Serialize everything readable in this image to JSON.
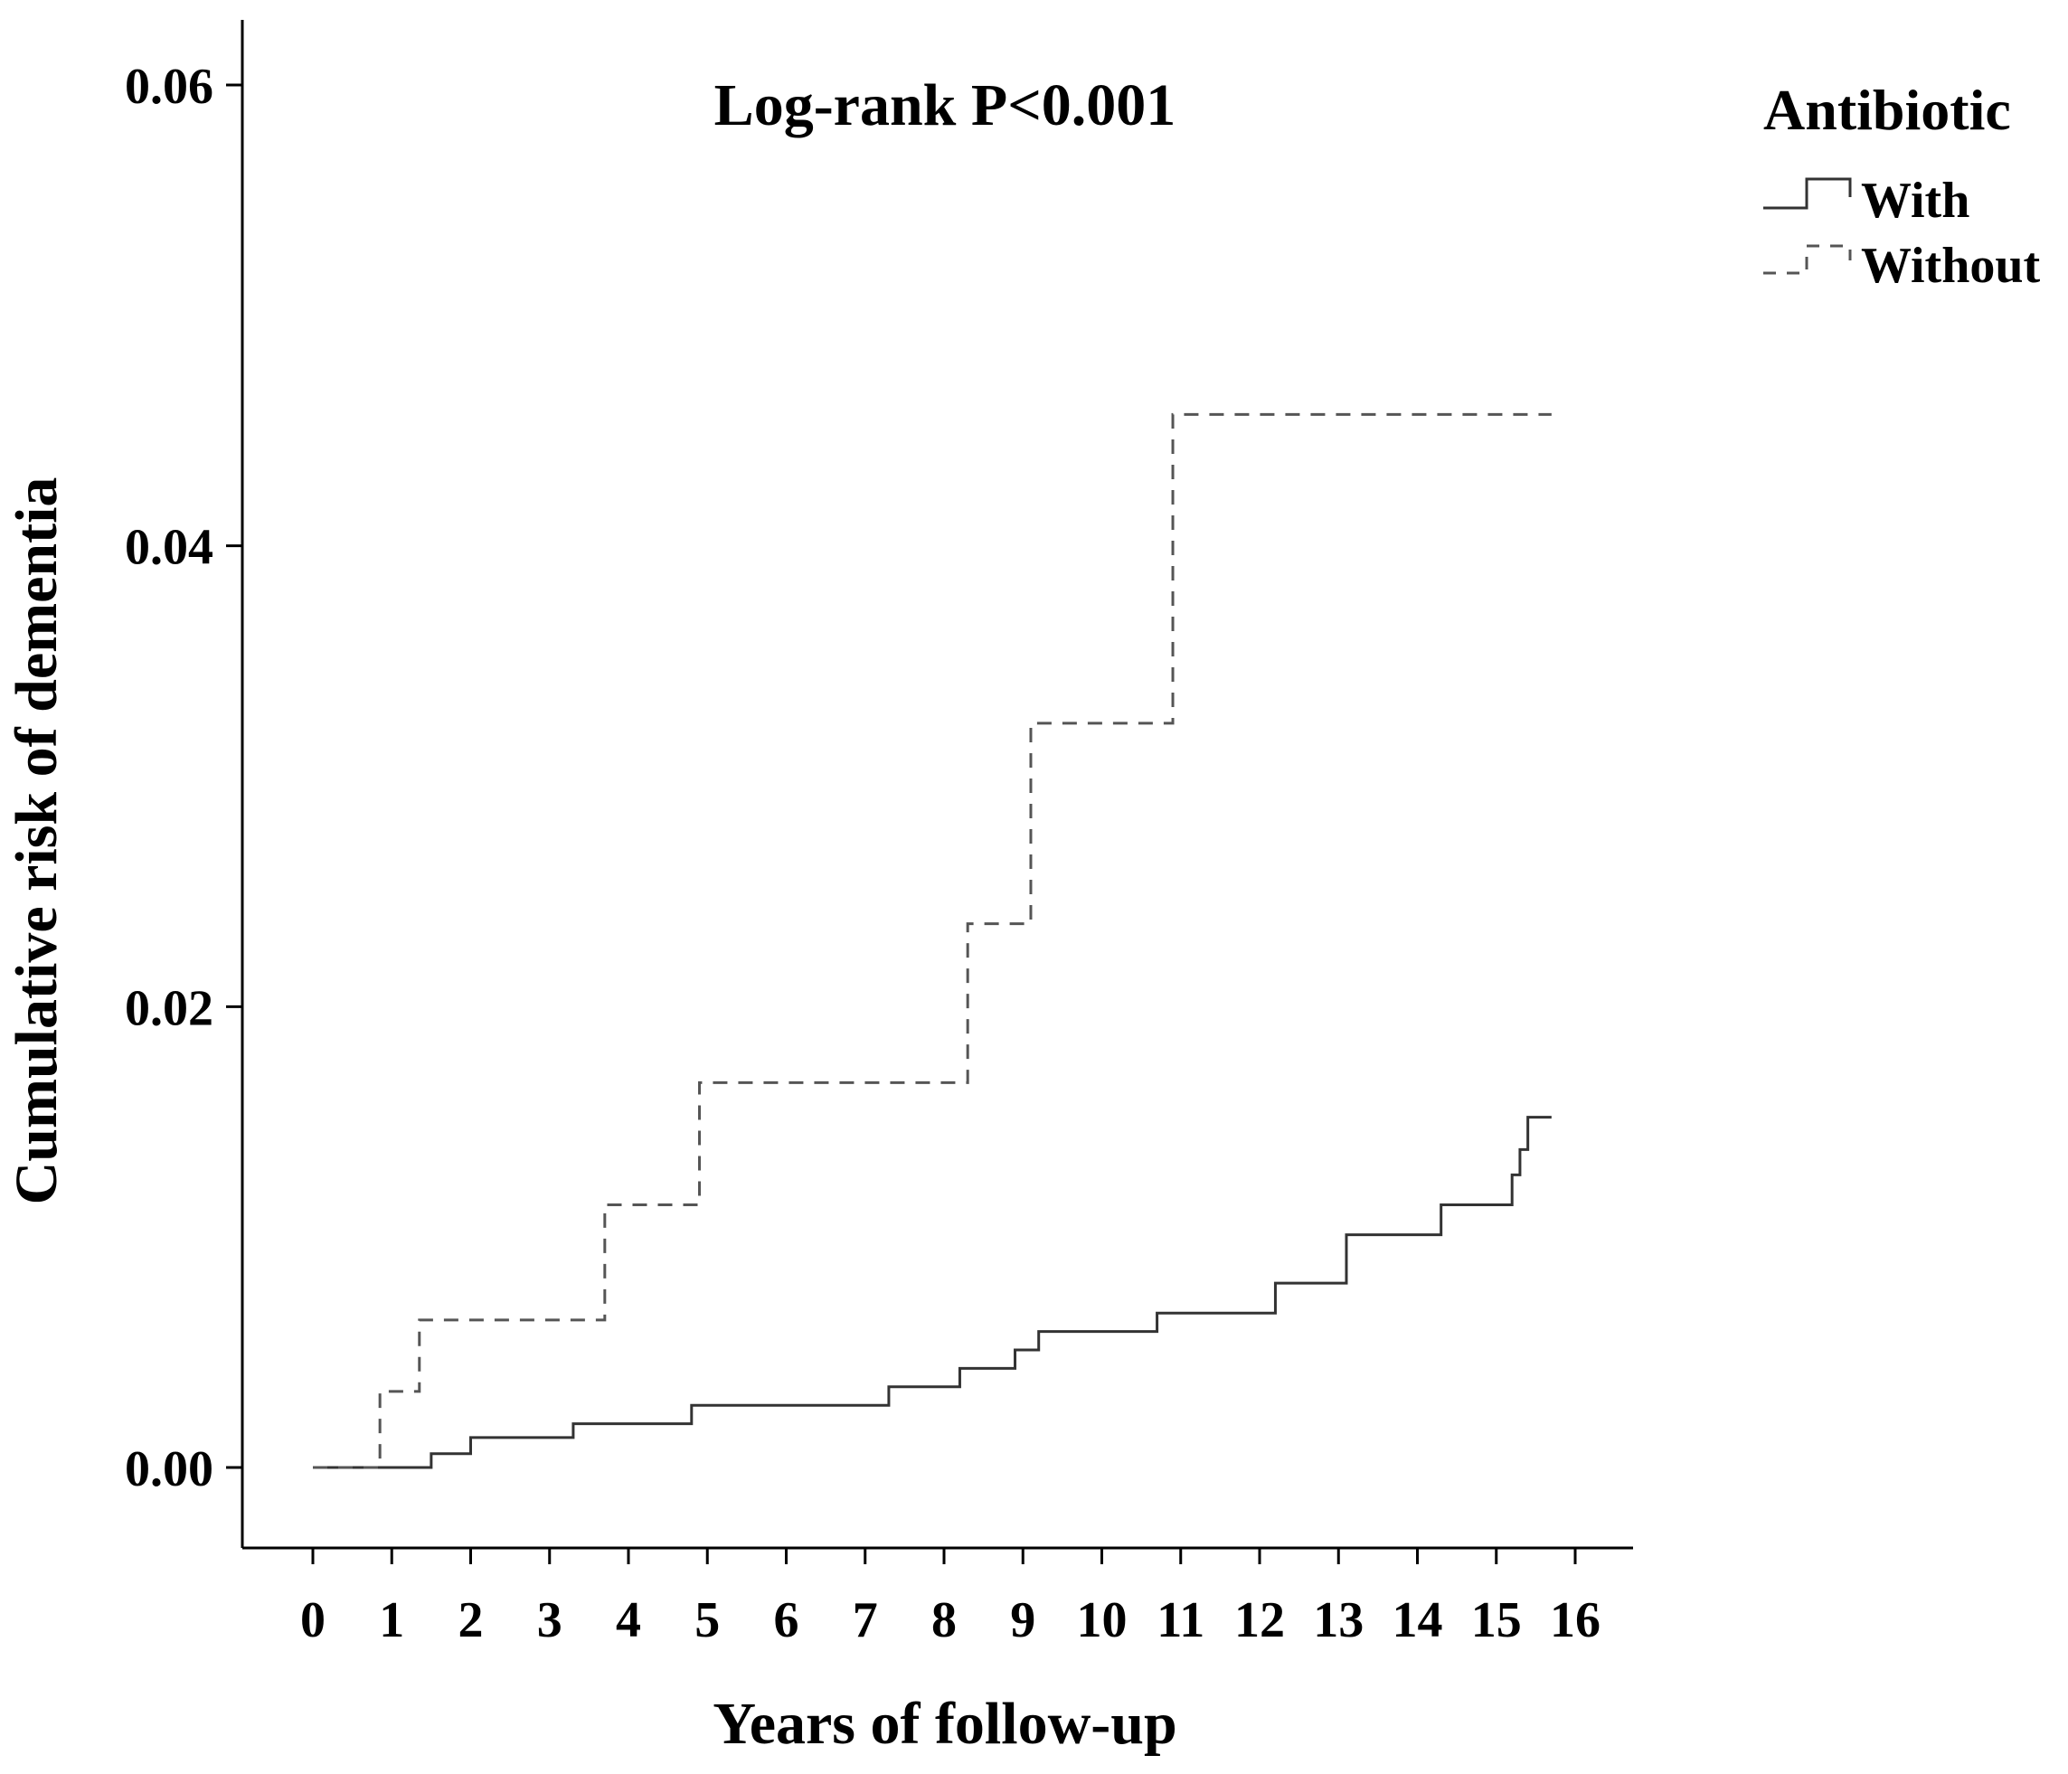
{
  "chart_data": {
    "type": "line",
    "step": true,
    "annotation": "Log-rank P<0.001",
    "xlabel": "Years of follow-up",
    "ylabel": "Cumulative risk of dementia",
    "xlim": [
      0,
      16
    ],
    "ylim": [
      0,
      0.06
    ],
    "xticks": [
      "0",
      "1",
      "2",
      "3",
      "4",
      "5",
      "6",
      "7",
      "8",
      "9",
      "10",
      "11",
      "12",
      "13",
      "14",
      "15",
      "16"
    ],
    "yticks": [
      "0.00",
      "0.02",
      "0.04",
      "0.06"
    ],
    "grid": false,
    "legend": {
      "title": "Antibiotic",
      "position": "top-right",
      "entries": [
        "With",
        "Without"
      ]
    },
    "series": [
      {
        "name": "With",
        "line_style": "solid",
        "color": "#333333",
        "x": [
          0,
          1.5,
          2.0,
          3.3,
          4.8,
          7.3,
          8.2,
          8.9,
          9.2,
          10.7,
          12.2,
          13.1,
          14.3,
          15.2,
          15.3,
          15.4,
          15.7
        ],
        "y": [
          0,
          0.0006,
          0.0013,
          0.0019,
          0.0027,
          0.0035,
          0.0043,
          0.0051,
          0.0059,
          0.0067,
          0.008,
          0.0101,
          0.0114,
          0.0127,
          0.0138,
          0.0152,
          0.0152
        ]
      },
      {
        "name": "Without",
        "line_style": "dashed",
        "color": "#555555",
        "x": [
          0,
          0.85,
          1.35,
          3.7,
          4.9,
          8.3,
          9.1,
          10.9,
          15.7
        ],
        "y": [
          0,
          0.0033,
          0.0064,
          0.0114,
          0.0167,
          0.0236,
          0.0323,
          0.0457,
          0.0457
        ]
      }
    ]
  }
}
